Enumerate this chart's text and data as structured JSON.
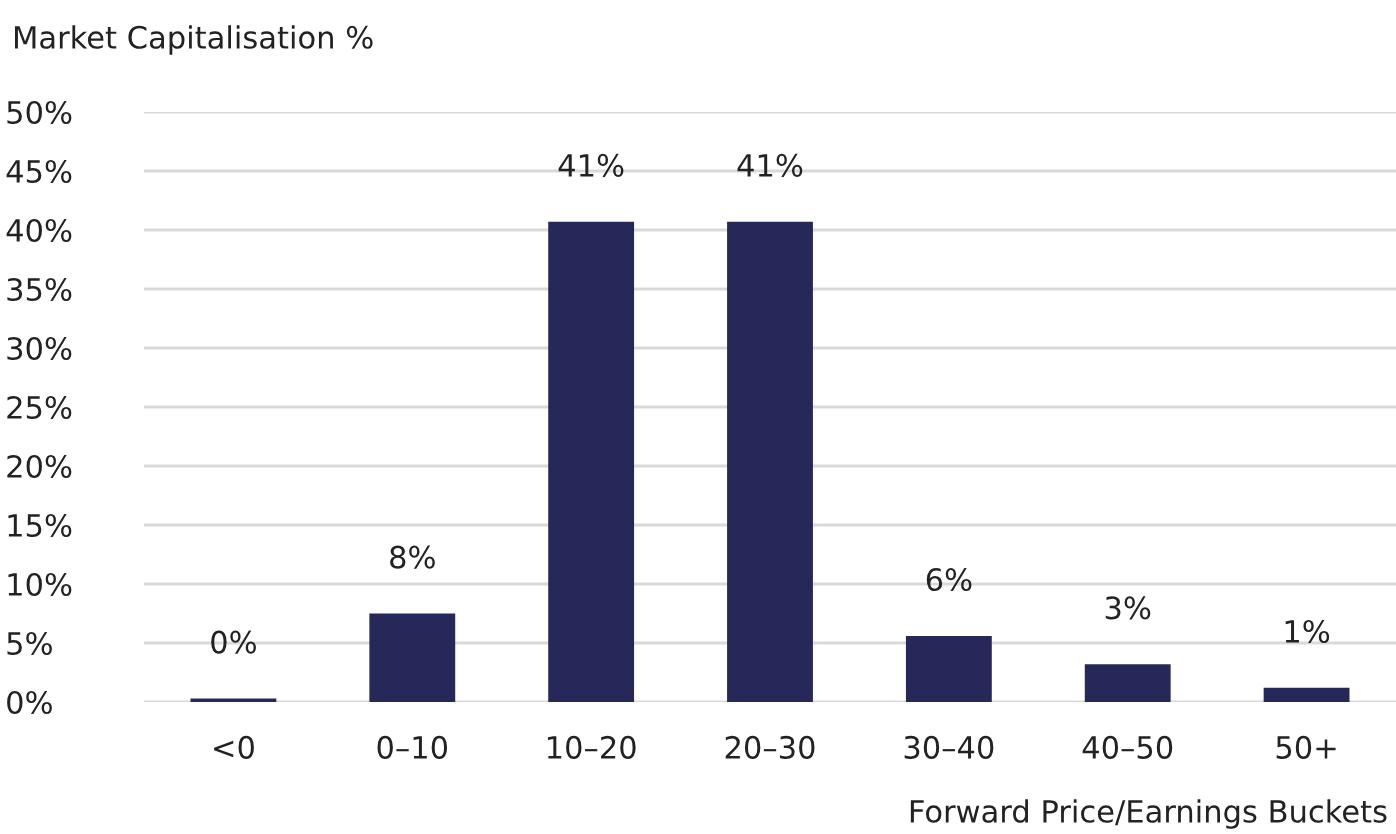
{
  "chart_data": {
    "type": "bar",
    "ylabel": "Market Capitalisation %",
    "xlabel": "Forward Price/Earnings Buckets",
    "categories": [
      "<0",
      "0–10",
      "10–20",
      "20–30",
      "30–40",
      "40–50",
      "50+"
    ],
    "values": [
      0.3,
      7.5,
      40.7,
      40.7,
      5.6,
      3.2,
      1.2
    ],
    "value_labels": [
      "0%",
      "8%",
      "41%",
      "41%",
      "6%",
      "3%",
      "1%"
    ],
    "color": "#252858",
    "ylim": [
      0,
      50
    ],
    "yticks": [
      {
        "value": 0,
        "label": "0%"
      },
      {
        "value": 5,
        "label": "5%"
      },
      {
        "value": 10,
        "label": "10%"
      },
      {
        "value": 15,
        "label": "15%"
      },
      {
        "value": 20,
        "label": "20%"
      },
      {
        "value": 25,
        "label": "25%"
      },
      {
        "value": 30,
        "label": "30%"
      },
      {
        "value": 35,
        "label": "35%"
      },
      {
        "value": 40,
        "label": "40%"
      },
      {
        "value": 45,
        "label": "45%"
      },
      {
        "value": 50,
        "label": "50%"
      }
    ],
    "grid": "y",
    "legend": false
  }
}
